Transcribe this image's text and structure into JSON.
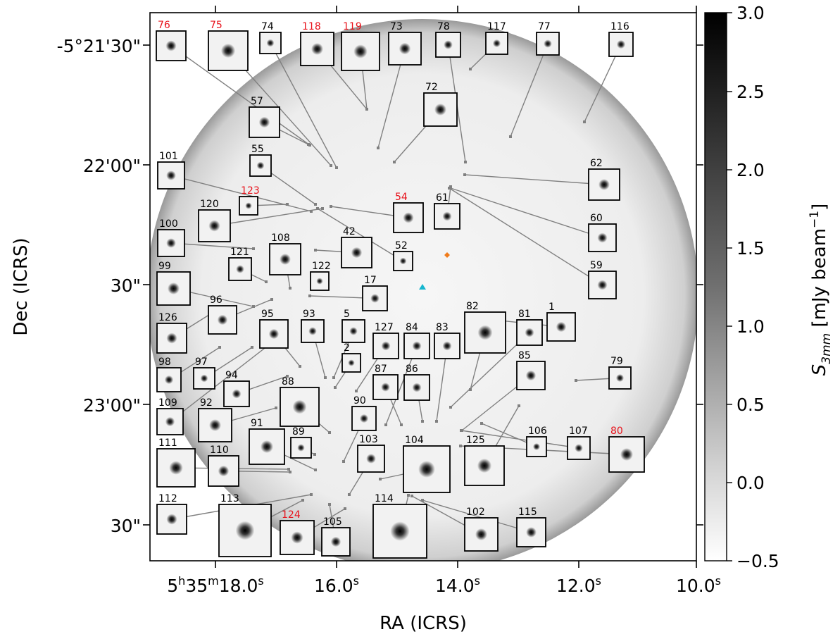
{
  "colors": {
    "label_default": "#000000",
    "label_highlight": "#e8111a",
    "leader": "#808080",
    "marker_diamond": "#f07b1a",
    "marker_triangle": "#17b6cf"
  },
  "chart_data": {
    "type": "image",
    "xlabel": "RA (ICRS)",
    "ylabel": "Dec (ICRS)",
    "x_ticks": [
      {
        "base": "5",
        "b_sup": "h",
        "mid": "35",
        "m_sup": "m",
        "sec": "18.0",
        "s_sup": "s"
      },
      {
        "sec": "16.0",
        "s_sup": "s"
      },
      {
        "sec": "14.0",
        "s_sup": "s"
      },
      {
        "sec": "12.0",
        "s_sup": "s"
      },
      {
        "sec": "10.0",
        "s_sup": "s"
      }
    ],
    "y_ticks": [
      "-5°21'30\"",
      "22'00\"",
      "30\"",
      "23'00\"",
      "30\""
    ],
    "colorbar": {
      "label": "S_{3mm} [mJy beam^{-1}]",
      "label_S": "S",
      "label_sub": "3mm",
      "label_rest": " [mJy beam",
      "label_exp": "−1",
      "label_close": "]",
      "range": [
        -0.5,
        3.0
      ],
      "colormap": "gray_r",
      "ticks": [
        "3.0",
        "2.5",
        "2.0",
        "1.5",
        "1.0",
        "0.5",
        "0.0",
        "−0.5"
      ]
    },
    "sources": [
      {
        "id": "76",
        "hl": true
      },
      {
        "id": "75",
        "hl": true
      },
      {
        "id": "74",
        "hl": false
      },
      {
        "id": "118",
        "hl": true
      },
      {
        "id": "119",
        "hl": true
      },
      {
        "id": "73",
        "hl": false
      },
      {
        "id": "78",
        "hl": false
      },
      {
        "id": "117",
        "hl": false
      },
      {
        "id": "77",
        "hl": false
      },
      {
        "id": "116",
        "hl": false
      },
      {
        "id": "72",
        "hl": false
      },
      {
        "id": "57",
        "hl": false
      },
      {
        "id": "55",
        "hl": false
      },
      {
        "id": "101",
        "hl": false
      },
      {
        "id": "62",
        "hl": false
      },
      {
        "id": "123",
        "hl": true
      },
      {
        "id": "54",
        "hl": true
      },
      {
        "id": "61",
        "hl": false
      },
      {
        "id": "120",
        "hl": false
      },
      {
        "id": "100",
        "hl": false
      },
      {
        "id": "60",
        "hl": false
      },
      {
        "id": "108",
        "hl": false
      },
      {
        "id": "42",
        "hl": false
      },
      {
        "id": "52",
        "hl": false
      },
      {
        "id": "121",
        "hl": false
      },
      {
        "id": "99",
        "hl": false
      },
      {
        "id": "122",
        "hl": false
      },
      {
        "id": "59",
        "hl": false
      },
      {
        "id": "17",
        "hl": false
      },
      {
        "id": "96",
        "hl": false
      },
      {
        "id": "126",
        "hl": false
      },
      {
        "id": "95",
        "hl": false
      },
      {
        "id": "93",
        "hl": false
      },
      {
        "id": "5",
        "hl": false
      },
      {
        "id": "82",
        "hl": false
      },
      {
        "id": "81",
        "hl": false
      },
      {
        "id": "1",
        "hl": false
      },
      {
        "id": "127",
        "hl": false
      },
      {
        "id": "84",
        "hl": false
      },
      {
        "id": "83",
        "hl": false
      },
      {
        "id": "2",
        "hl": false
      },
      {
        "id": "85",
        "hl": false
      },
      {
        "id": "98",
        "hl": false
      },
      {
        "id": "97",
        "hl": false
      },
      {
        "id": "94",
        "hl": false
      },
      {
        "id": "87",
        "hl": false
      },
      {
        "id": "86",
        "hl": false
      },
      {
        "id": "79",
        "hl": false
      },
      {
        "id": "88",
        "hl": false
      },
      {
        "id": "109",
        "hl": false
      },
      {
        "id": "92",
        "hl": false
      },
      {
        "id": "90",
        "hl": false
      },
      {
        "id": "91",
        "hl": false
      },
      {
        "id": "89",
        "hl": false
      },
      {
        "id": "104",
        "hl": false
      },
      {
        "id": "125",
        "hl": false
      },
      {
        "id": "106",
        "hl": false
      },
      {
        "id": "107",
        "hl": false
      },
      {
        "id": "80",
        "hl": true
      },
      {
        "id": "111",
        "hl": false
      },
      {
        "id": "110",
        "hl": false
      },
      {
        "id": "103",
        "hl": false
      },
      {
        "id": "112",
        "hl": false
      },
      {
        "id": "113",
        "hl": false
      },
      {
        "id": "124",
        "hl": true
      },
      {
        "id": "114",
        "hl": false
      },
      {
        "id": "105",
        "hl": false
      },
      {
        "id": "102",
        "hl": false
      },
      {
        "id": "115",
        "hl": false
      }
    ]
  }
}
